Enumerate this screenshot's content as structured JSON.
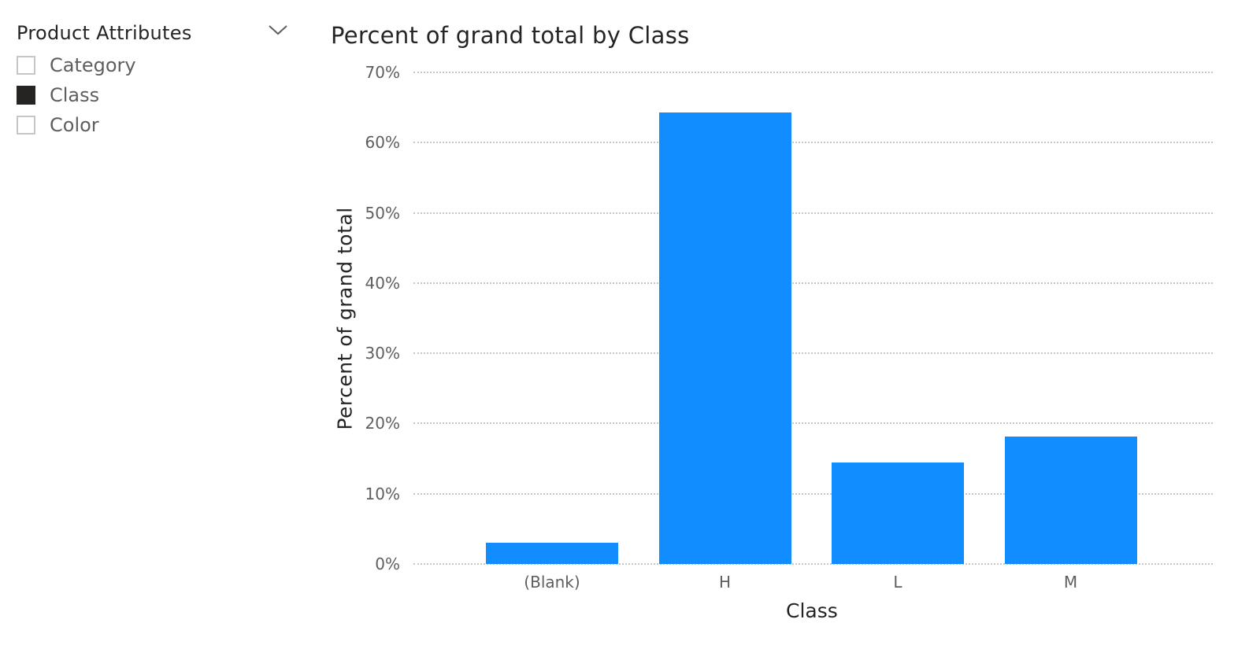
{
  "slicer": {
    "title": "Product Attributes",
    "expand_icon": "chevron-down-icon",
    "items": [
      {
        "label": "Category",
        "checked": false
      },
      {
        "label": "Class",
        "checked": true
      },
      {
        "label": "Color",
        "checked": false
      }
    ]
  },
  "colors": {
    "bar": "#118dff",
    "text_dark": "#252423",
    "text_muted": "#605e5c",
    "grid": "#c8c6c4"
  },
  "chart_data": {
    "type": "bar",
    "title": "Percent of grand total by Class",
    "xlabel": "Class",
    "ylabel": "Percent of grand total",
    "categories": [
      "(Blank)",
      "H",
      "L",
      "M"
    ],
    "values": [
      3.0,
      64.3,
      14.5,
      18.1
    ],
    "value_format": "percent",
    "ylim": [
      0,
      70
    ],
    "yticks": [
      "0%",
      "10%",
      "20%",
      "30%",
      "40%",
      "50%",
      "60%",
      "70%"
    ],
    "grid": true,
    "grid_style": "dotted",
    "legend": null
  }
}
